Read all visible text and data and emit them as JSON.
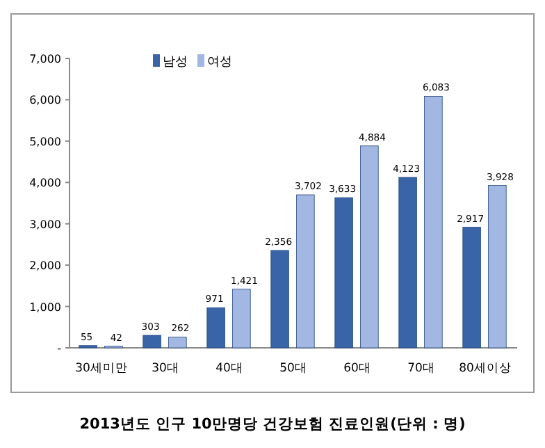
{
  "chart_data": {
    "type": "bar",
    "title": "2013년도 인구 10만명당 건강보험 진료인원(단위 : 명)",
    "categories": [
      "30세미만",
      "30대",
      "40대",
      "50대",
      "60대",
      "70대",
      "80세이상"
    ],
    "series": [
      {
        "name": "남성",
        "color": "#3a64a8",
        "values": [
          55,
          303,
          971,
          2356,
          3633,
          4123,
          2917
        ],
        "value_labels": [
          "55",
          "303",
          "971",
          "2,356",
          "3,633",
          "4,123",
          "2,917"
        ]
      },
      {
        "name": "여성",
        "color": "#a3b7e3",
        "values": [
          42,
          262,
          1421,
          3702,
          4884,
          6083,
          3928
        ],
        "value_labels": [
          "42",
          "262",
          "1,421",
          "3,702",
          "4,884",
          "6,083",
          "3,928"
        ]
      }
    ],
    "ylim": [
      0,
      7000
    ],
    "yticks": [
      {
        "value": 0,
        "label": "-"
      },
      {
        "value": 1000,
        "label": "1,000"
      },
      {
        "value": 2000,
        "label": "2,000"
      },
      {
        "value": 3000,
        "label": "3,000"
      },
      {
        "value": 4000,
        "label": "4,000"
      },
      {
        "value": 5000,
        "label": "5,000"
      },
      {
        "value": 6000,
        "label": "6,000"
      },
      {
        "value": 7000,
        "label": "7,000"
      }
    ],
    "legend": "top left"
  }
}
